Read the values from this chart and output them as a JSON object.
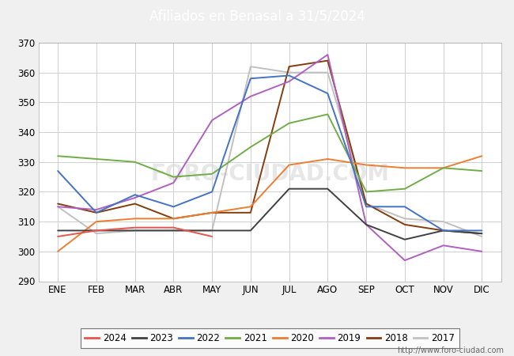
{
  "title": "Afiliados en Benasal a 31/5/2024",
  "header_color": "#5b9bd5",
  "plot_bg": "#ffffff",
  "fig_bg": "#f0f0f0",
  "ylim": [
    290,
    370
  ],
  "yticks": [
    290,
    300,
    310,
    320,
    330,
    340,
    350,
    360,
    370
  ],
  "months": [
    "ENE",
    "FEB",
    "MAR",
    "ABR",
    "MAY",
    "JUN",
    "JUL",
    "AGO",
    "SEP",
    "OCT",
    "NOV",
    "DIC"
  ],
  "url": "http://www.foro-ciudad.com",
  "series": {
    "2024": {
      "color": "#e8534a",
      "data": [
        305,
        307,
        308,
        308,
        305,
        null,
        null,
        null,
        null,
        null,
        null,
        null
      ]
    },
    "2023": {
      "color": "#404040",
      "data": [
        307,
        307,
        307,
        307,
        307,
        307,
        321,
        321,
        309,
        304,
        307,
        306
      ]
    },
    "2022": {
      "color": "#4472c4",
      "data": [
        327,
        313,
        319,
        315,
        320,
        358,
        359,
        353,
        315,
        315,
        307,
        307
      ]
    },
    "2021": {
      "color": "#70ad47",
      "data": [
        332,
        331,
        330,
        325,
        326,
        335,
        343,
        346,
        320,
        321,
        328,
        327
      ]
    },
    "2020": {
      "color": "#ed7d31",
      "data": [
        300,
        310,
        311,
        311,
        313,
        315,
        329,
        331,
        329,
        328,
        328,
        332
      ]
    },
    "2019": {
      "color": "#b060c0",
      "data": [
        315,
        314,
        318,
        323,
        344,
        352,
        357,
        366,
        309,
        297,
        302,
        300
      ]
    },
    "2018": {
      "color": "#843c0c",
      "data": [
        316,
        313,
        316,
        311,
        313,
        313,
        362,
        364,
        316,
        309,
        307,
        306
      ]
    },
    "2017": {
      "color": "#c0c0c0",
      "data": [
        315,
        306,
        307,
        307,
        307,
        362,
        360,
        360,
        316,
        311,
        310,
        305
      ]
    }
  },
  "legend_order": [
    "2024",
    "2023",
    "2022",
    "2021",
    "2020",
    "2019",
    "2018",
    "2017"
  ]
}
